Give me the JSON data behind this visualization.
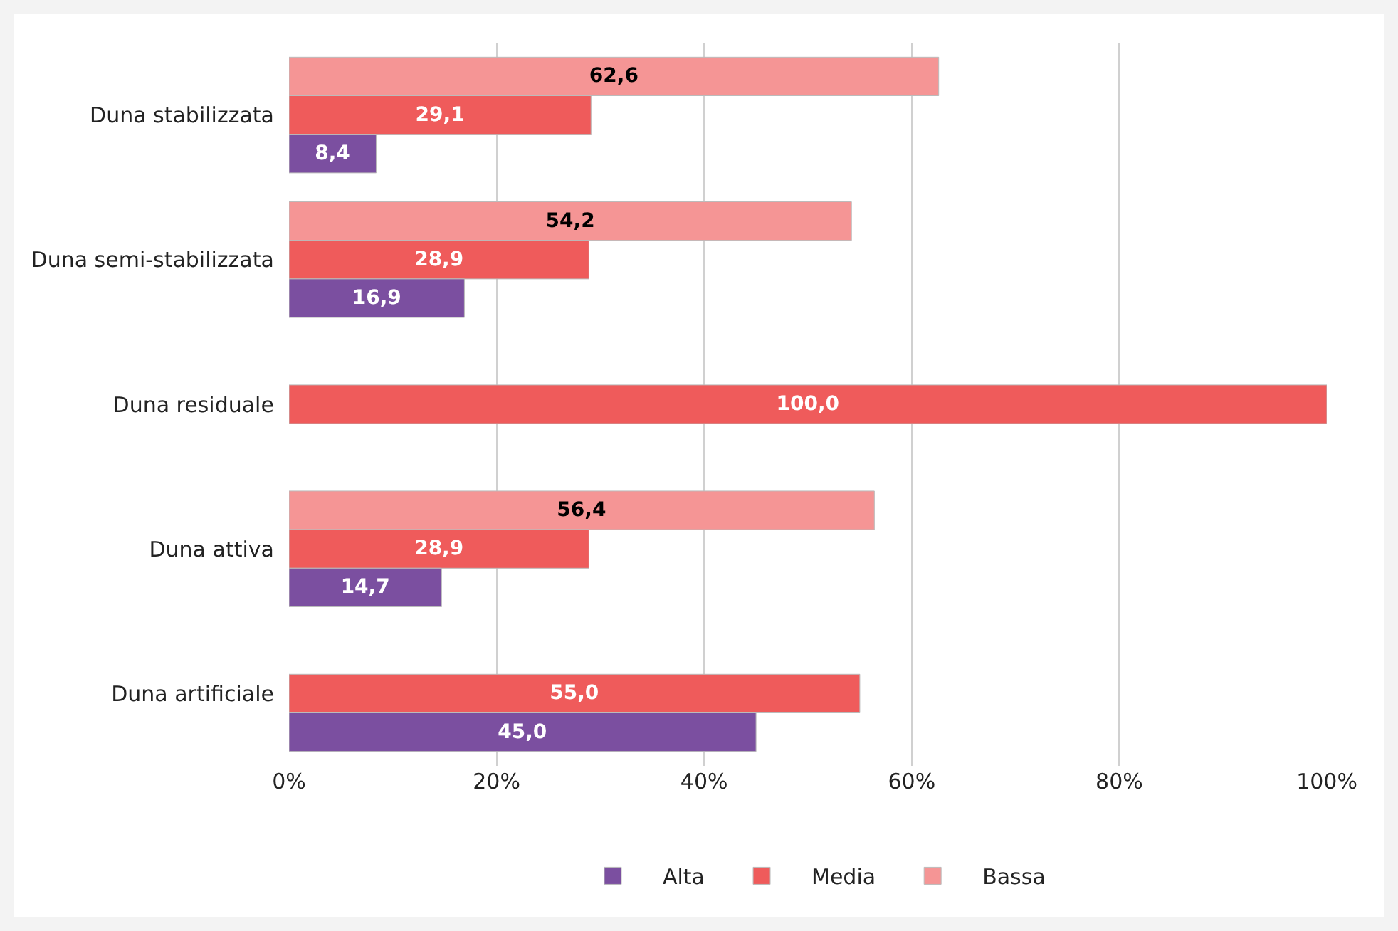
{
  "chart_data": {
    "type": "bar",
    "orientation": "horizontal",
    "categories": [
      "Duna stabilizzata",
      "Duna semi-stabilizzata",
      "Duna residuale",
      "Duna attiva",
      "Duna artificiale"
    ],
    "series": [
      {
        "name": "Alta",
        "color": "#7b4fa0",
        "values": [
          8.4,
          16.9,
          null,
          14.7,
          45.0
        ],
        "value_labels": [
          "8,4",
          "16,9",
          null,
          "14,7",
          "45,0"
        ]
      },
      {
        "name": "Media",
        "color": "#ef5b5b",
        "values": [
          29.1,
          28.9,
          100.0,
          28.9,
          55.0
        ],
        "value_labels": [
          "29,1",
          "28,9",
          "100,0",
          "28,9",
          "55,0"
        ]
      },
      {
        "name": "Bassa",
        "color": "#f59595",
        "values": [
          62.6,
          54.2,
          null,
          56.4,
          null
        ],
        "value_labels": [
          "62,6",
          "54,2",
          null,
          "56,4",
          null
        ]
      }
    ],
    "xlim": [
      0,
      100
    ],
    "xticks": [
      {
        "value": 0,
        "label": "0%"
      },
      {
        "value": 20,
        "label": "20%"
      },
      {
        "value": 40,
        "label": "40%"
      },
      {
        "value": 60,
        "label": "60%"
      },
      {
        "value": 80,
        "label": "80%"
      },
      {
        "value": 100,
        "label": "100%"
      }
    ],
    "grid": "x",
    "legend": "bottom"
  }
}
